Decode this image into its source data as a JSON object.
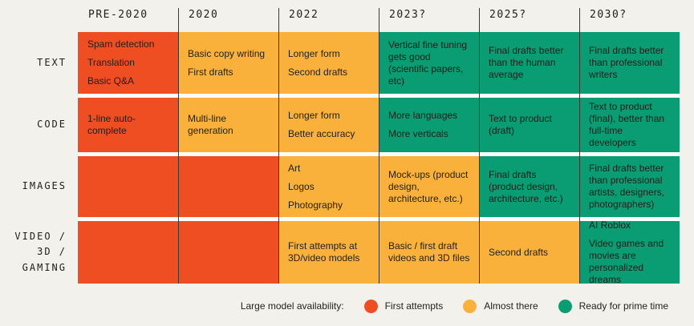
{
  "colors": {
    "background": "#F3F1EC",
    "row_gap_backing": "#FCFCFA",
    "grid_line": "#3B3935",
    "cell_text": "#201F1B",
    "first_attempts": "#EF4D22",
    "almost_there": "#F9B13C",
    "ready_for_prime_time": "#0A9C72"
  },
  "chart_data": {
    "type": "table",
    "columns": [
      "PRE-2020",
      "2020",
      "2022",
      "2023?",
      "2025?",
      "2030?"
    ],
    "rows": [
      {
        "label": "TEXT",
        "label_lines": [
          "TEXT"
        ],
        "cells": [
          {
            "status": "first_attempts",
            "items": [
              "Spam detection",
              "Translation",
              "Basic Q&A"
            ]
          },
          {
            "status": "almost_there",
            "items": [
              "Basic copy writing",
              "First drafts"
            ]
          },
          {
            "status": "almost_there",
            "items": [
              "Longer form",
              "Second drafts"
            ]
          },
          {
            "status": "ready_for_prime_time",
            "items": [
              "Vertical fine tuning gets good (scientific papers, etc)"
            ]
          },
          {
            "status": "ready_for_prime_time",
            "items": [
              "Final drafts better than the human average"
            ]
          },
          {
            "status": "ready_for_prime_time",
            "items": [
              "Final drafts better than professional writers"
            ]
          }
        ]
      },
      {
        "label": "CODE",
        "label_lines": [
          "CODE"
        ],
        "cells": [
          {
            "status": "first_attempts",
            "items": [
              "1-line auto-complete"
            ]
          },
          {
            "status": "almost_there",
            "items": [
              "Multi-line generation"
            ]
          },
          {
            "status": "almost_there",
            "items": [
              "Longer form",
              "Better accuracy"
            ]
          },
          {
            "status": "ready_for_prime_time",
            "items": [
              "More languages",
              "More verticals"
            ]
          },
          {
            "status": "ready_for_prime_time",
            "items": [
              "Text to product (draft)"
            ]
          },
          {
            "status": "ready_for_prime_time",
            "items": [
              "Text to product (final), better than full-time developers"
            ]
          }
        ]
      },
      {
        "label": "IMAGES",
        "label_lines": [
          "IMAGES"
        ],
        "cells": [
          {
            "status": "first_attempts",
            "items": []
          },
          {
            "status": "first_attempts",
            "items": []
          },
          {
            "status": "almost_there",
            "items": [
              "Art",
              "Logos",
              "Photography"
            ]
          },
          {
            "status": "almost_there",
            "items": [
              "Mock-ups (product design, architecture, etc.)"
            ]
          },
          {
            "status": "ready_for_prime_time",
            "items": [
              "Final drafts (product design, architecture, etc.)"
            ]
          },
          {
            "status": "ready_for_prime_time",
            "items": [
              "Final drafts better than professional artists, designers, photographers)"
            ]
          }
        ]
      },
      {
        "label": "VIDEO / 3D / GAMING",
        "label_lines": [
          "VIDEO /",
          "3D /",
          "GAMING"
        ],
        "cells": [
          {
            "status": "first_attempts",
            "items": []
          },
          {
            "status": "first_attempts",
            "items": []
          },
          {
            "status": "almost_there",
            "items": [
              "First attempts at 3D/video models"
            ]
          },
          {
            "status": "almost_there",
            "items": [
              "Basic / first draft videos and 3D files"
            ]
          },
          {
            "status": "almost_there",
            "items": [
              "Second drafts"
            ]
          },
          {
            "status": "ready_for_prime_time",
            "items": [
              "AI Roblox",
              "Video games and movies are personalized dreams"
            ]
          }
        ]
      }
    ],
    "legend_label": "Large model availability:",
    "legend": [
      {
        "label": "First attempts",
        "status": "first_attempts"
      },
      {
        "label": "Almost there",
        "status": "almost_there"
      },
      {
        "label": "Ready for prime time",
        "status": "ready_for_prime_time"
      }
    ],
    "layout_hints": {
      "legend_position": "bottom-right",
      "grid": "column-divider-lines",
      "row_gap_color": "white"
    }
  }
}
